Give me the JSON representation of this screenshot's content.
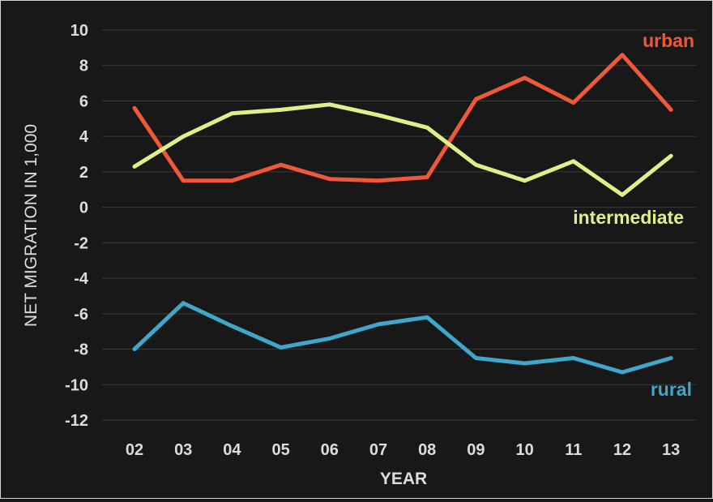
{
  "chart_data": {
    "type": "line",
    "title": "",
    "xlabel": "YEAR",
    "ylabel": "NET MIGRATION IN 1,000",
    "categories": [
      "02",
      "03",
      "04",
      "05",
      "06",
      "07",
      "08",
      "09",
      "10",
      "11",
      "12",
      "13"
    ],
    "ylim": [
      -12,
      10
    ],
    "yticks": [
      "10",
      "8",
      "6",
      "4",
      "2",
      "0",
      "-2",
      "-4",
      "-6",
      "-8",
      "-10",
      "-12"
    ],
    "grid": true,
    "legend": "inline labels at line ends",
    "series": [
      {
        "name": "urban",
        "color": "#f0583a",
        "values": [
          5.6,
          1.5,
          1.5,
          2.4,
          1.6,
          1.5,
          1.7,
          6.1,
          7.3,
          5.9,
          8.6,
          5.5
        ]
      },
      {
        "name": "intermediate",
        "color": "#ddf08a",
        "values": [
          2.3,
          4.0,
          5.3,
          5.5,
          5.8,
          5.2,
          4.5,
          2.4,
          1.5,
          2.6,
          0.7,
          2.9
        ]
      },
      {
        "name": "rural",
        "color": "#3fa7c9",
        "values": [
          -8.0,
          -5.4,
          -6.7,
          -7.9,
          -7.4,
          -6.6,
          -6.2,
          -8.5,
          -8.8,
          -8.5,
          -9.3,
          -8.5
        ]
      }
    ]
  },
  "colors": {
    "background": "#181818",
    "grid": "#3a3a3a",
    "text": "#dcdcdc"
  }
}
